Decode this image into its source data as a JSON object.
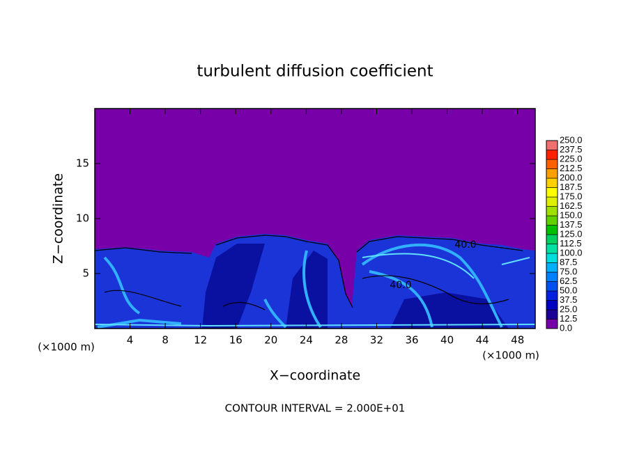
{
  "chart_data": {
    "type": "contour",
    "title": "turbulent diffusion coefficient",
    "xlabel": "X−coordinate",
    "ylabel": "Z−coordinate",
    "x_unit": "(×1000 m)",
    "y_unit": "(×1000 m)",
    "footer": "CONTOUR INTERVAL = 2.000E+01",
    "contour_labels": [
      "40.0",
      "40.0"
    ],
    "xlim": [
      0,
      50
    ],
    "xticks": [
      4,
      8,
      12,
      16,
      20,
      24,
      28,
      32,
      36,
      40,
      44,
      48
    ],
    "ylim": [
      0,
      20
    ],
    "yticks": [
      5,
      10,
      15
    ],
    "colorbar": {
      "levels": [
        {
          "value": 0,
          "label": "0.0"
        },
        {
          "value": 12.5,
          "label": "12.5"
        },
        {
          "value": 25,
          "label": "25.0"
        },
        {
          "value": 37.5,
          "label": "37.5"
        },
        {
          "value": 50,
          "label": "50.0"
        },
        {
          "value": 62.5,
          "label": "62.5"
        },
        {
          "value": 75,
          "label": "75.0"
        },
        {
          "value": 87.5,
          "label": "87.5"
        },
        {
          "value": 100,
          "label": "100.0"
        },
        {
          "value": 112.5,
          "label": "112.5"
        },
        {
          "value": 125,
          "label": "125.0"
        },
        {
          "value": 137.5,
          "label": "137.5"
        },
        {
          "value": 150,
          "label": "150.0"
        },
        {
          "value": 162.5,
          "label": "162.5"
        },
        {
          "value": 175,
          "label": "175.0"
        },
        {
          "value": 187.5,
          "label": "187.5"
        },
        {
          "value": 200,
          "label": "200.0"
        },
        {
          "value": 212.5,
          "label": "212.5"
        },
        {
          "value": 225,
          "label": "225.0"
        },
        {
          "value": 237.5,
          "label": "237.5"
        },
        {
          "value": 250,
          "label": "250.0"
        }
      ],
      "colors": [
        "#7800a8",
        "#1c0096",
        "#0000c0",
        "#0022e0",
        "#0050f0",
        "#0080ff",
        "#00b0ff",
        "#00dede",
        "#00e0a0",
        "#00d060",
        "#00c000",
        "#60d000",
        "#a0e000",
        "#e0f000",
        "#ffff00",
        "#ffd000",
        "#ffa000",
        "#ff6000",
        "#ff2000",
        "#f07070"
      ]
    }
  }
}
